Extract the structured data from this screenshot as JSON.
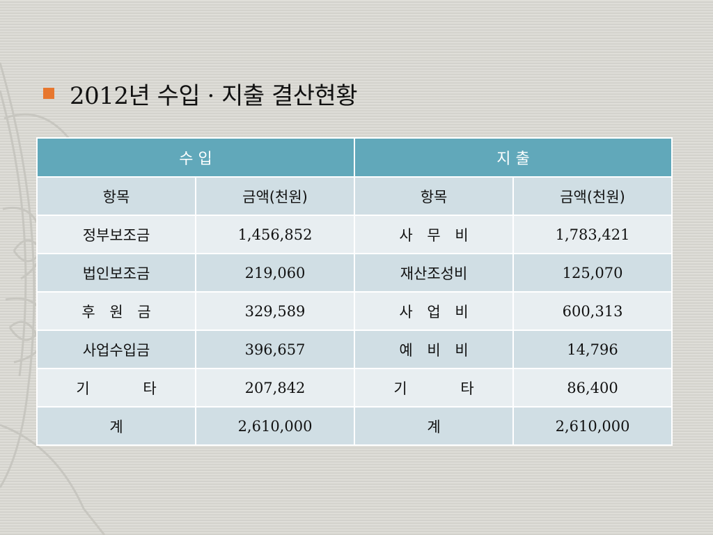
{
  "title": "2012년 수입 · 지출 결산현황",
  "table": {
    "income_header": "수 입",
    "expense_header": "지 출",
    "col_item": "항목",
    "col_amount": "금액(천원)",
    "rows": [
      {
        "income_item": "정부보조금",
        "income_amount": "1,456,852",
        "expense_item": "사 무 비",
        "expense_amount": "1,783,421"
      },
      {
        "income_item": "법인보조금",
        "income_amount": "219,060",
        "expense_item": "재산조성비",
        "expense_amount": "125,070"
      },
      {
        "income_item": "후 원 금",
        "income_amount": "329,589",
        "expense_item": "사 업 비",
        "expense_amount": "600,313"
      },
      {
        "income_item": "사업수입금",
        "income_amount": "396,657",
        "expense_item": "예 비 비",
        "expense_amount": "14,796"
      },
      {
        "income_item": "기 타",
        "income_amount": "207,842",
        "expense_item": "기 타",
        "expense_amount": "86,400"
      }
    ],
    "total": {
      "income_item": "계",
      "income_amount": "2,610,000",
      "expense_item": "계",
      "expense_amount": "2,610,000"
    }
  },
  "colors": {
    "accent": "#e7772e",
    "header_bg": "#61a8ba",
    "band_bg": "#d0dee4",
    "light_bg": "#e8eef1"
  }
}
